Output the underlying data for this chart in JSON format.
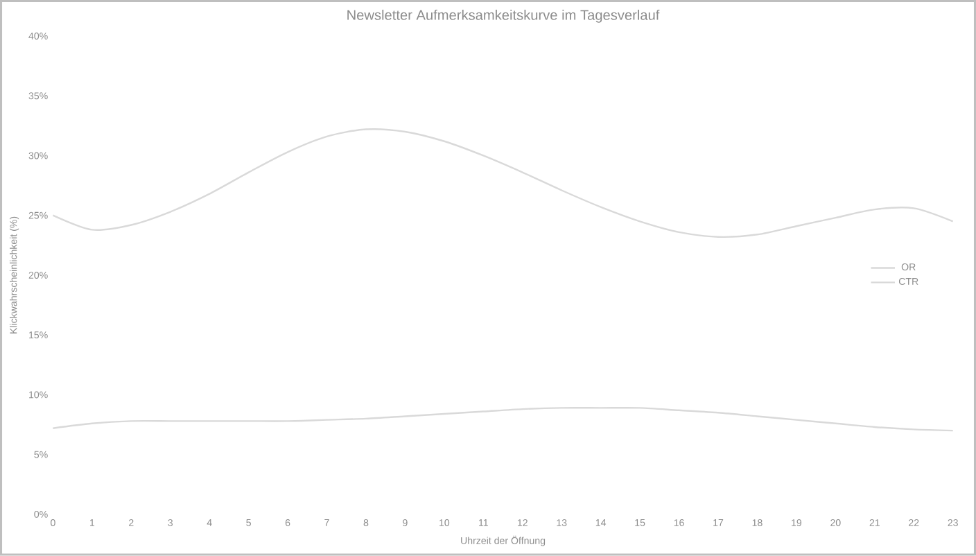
{
  "chart_data": {
    "type": "line",
    "title": "Newsletter Aufmerksamkeitskurve im Tagesverlauf",
    "xlabel": "Uhrzeit der Öffnung",
    "ylabel": "Klickwahrscheinlichkeit (%)",
    "x": [
      0,
      1,
      2,
      3,
      4,
      5,
      6,
      7,
      8,
      9,
      10,
      11,
      12,
      13,
      14,
      15,
      16,
      17,
      18,
      19,
      20,
      21,
      22,
      23
    ],
    "series": [
      {
        "name": "OR",
        "color": "#d9d9d9",
        "values": [
          25,
          23.8,
          24.2,
          25.3,
          26.8,
          28.6,
          30.3,
          31.6,
          32.2,
          32,
          31.2,
          30,
          28.6,
          27.1,
          25.7,
          24.5,
          23.6,
          23.2,
          23.4,
          24.1,
          24.8,
          25.5,
          25.6,
          24.5
        ]
      },
      {
        "name": "CTR",
        "color": "#d9d9d9",
        "values": [
          7.2,
          7.6,
          7.8,
          7.8,
          7.8,
          7.8,
          7.8,
          7.9,
          8.0,
          8.2,
          8.4,
          8.6,
          8.8,
          8.9,
          8.9,
          8.9,
          8.7,
          8.5,
          8.2,
          7.9,
          7.6,
          7.3,
          7.1,
          7.0
        ]
      }
    ],
    "xlim": [
      0,
      23
    ],
    "xticks": [
      0,
      1,
      2,
      3,
      4,
      5,
      6,
      7,
      8,
      9,
      10,
      11,
      12,
      13,
      14,
      15,
      16,
      17,
      18,
      19,
      20,
      21,
      22,
      23
    ],
    "ylim": [
      0,
      40
    ],
    "yticks": [
      {
        "value": 0,
        "label": "0%"
      },
      {
        "value": 5,
        "label": "5%"
      },
      {
        "value": 10,
        "label": "10%"
      },
      {
        "value": 15,
        "label": "15%"
      },
      {
        "value": 20,
        "label": "20%"
      },
      {
        "value": 25,
        "label": "25%"
      },
      {
        "value": 30,
        "label": "30%"
      },
      {
        "value": 35,
        "label": "35%"
      },
      {
        "value": 40,
        "label": "40%"
      }
    ],
    "grid": false,
    "legend": "right",
    "marker": "none",
    "line_style": "solid"
  }
}
